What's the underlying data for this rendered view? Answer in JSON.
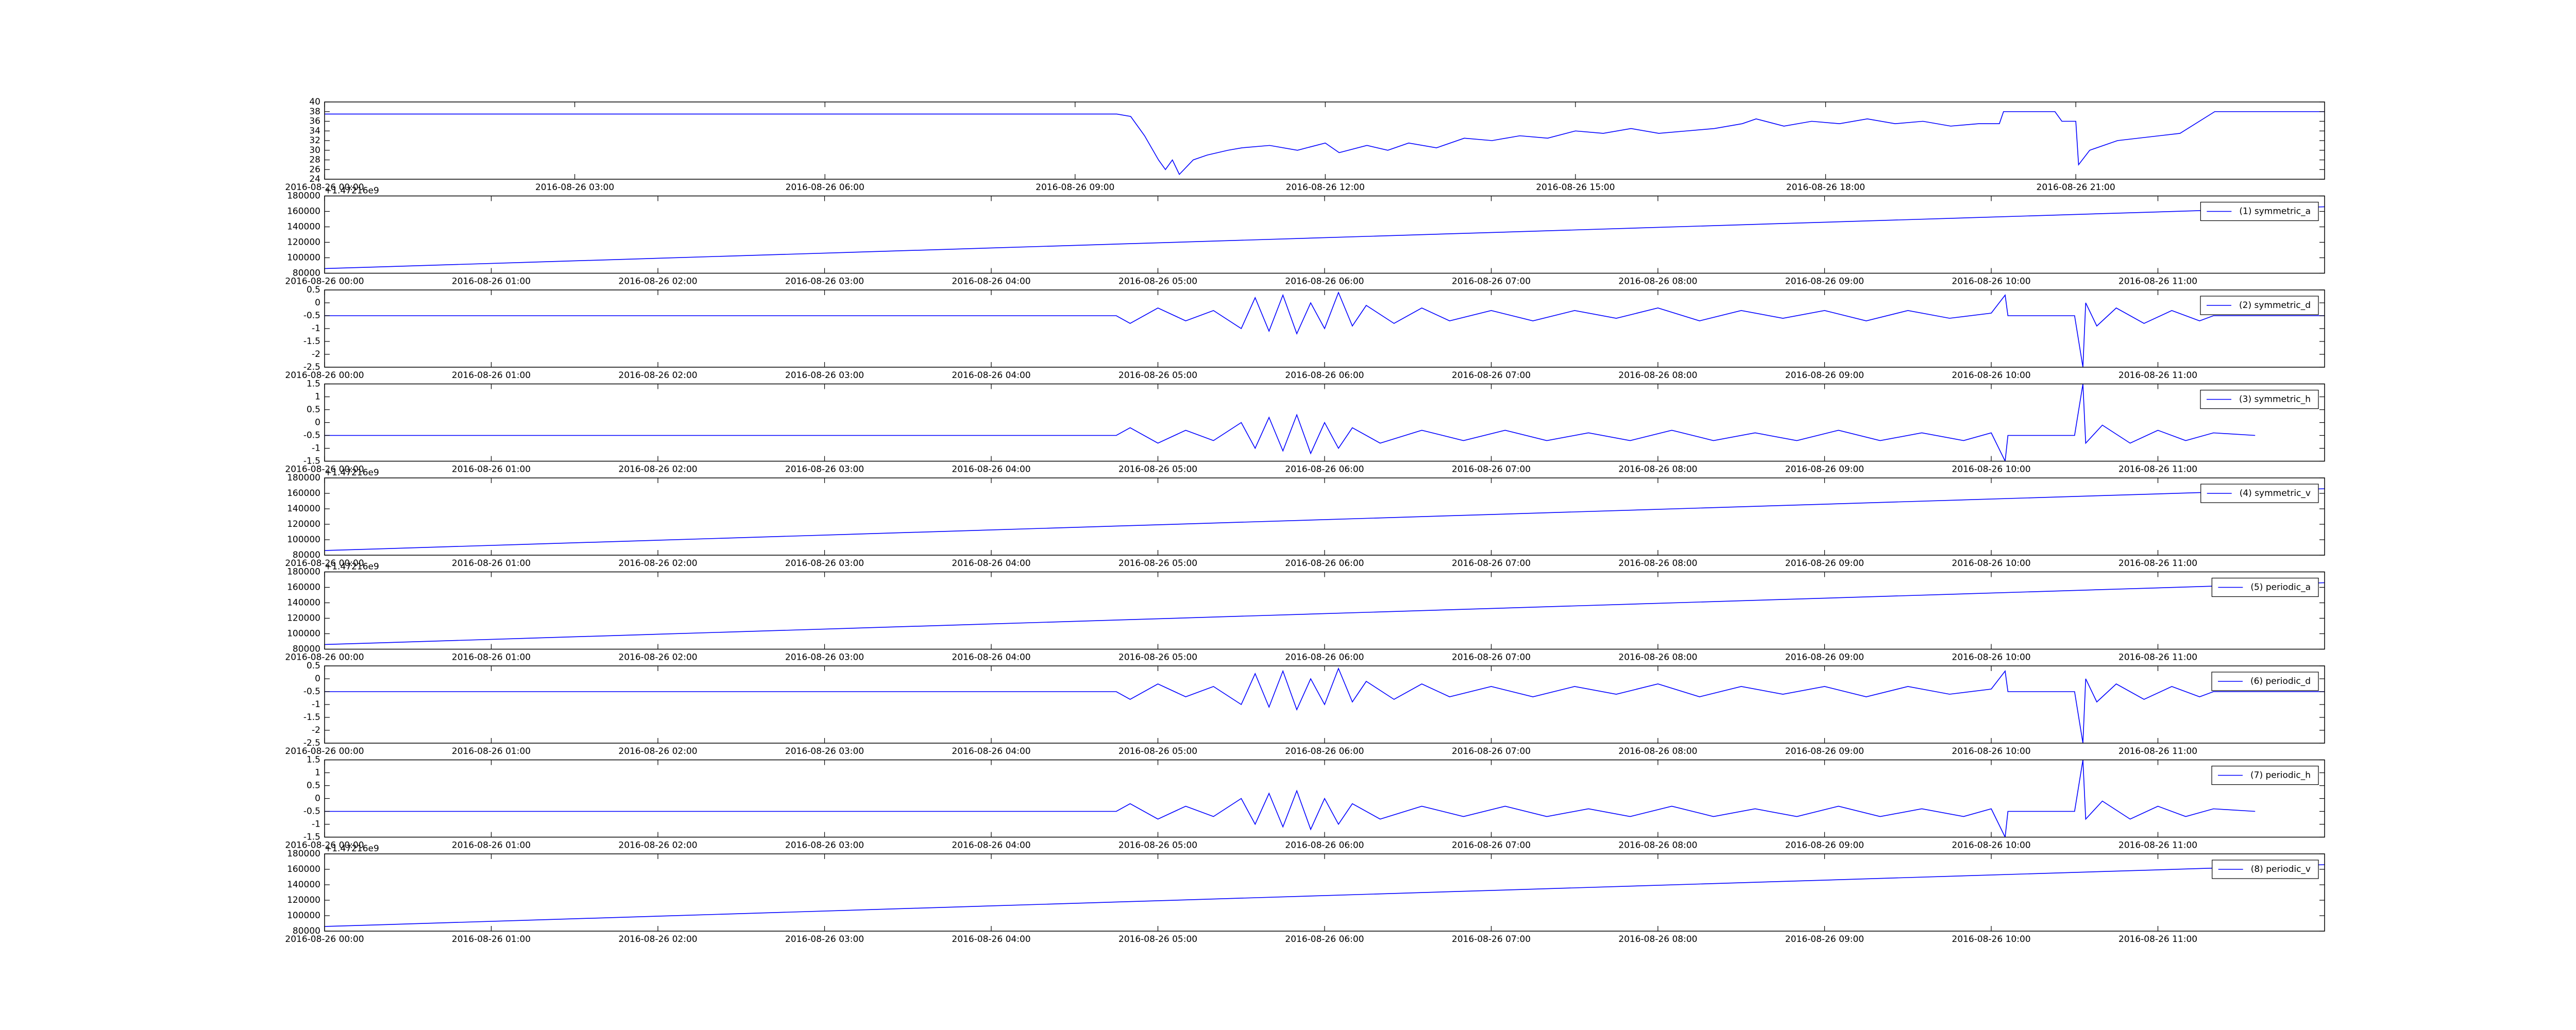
{
  "chart_data": [
    {
      "type": "line",
      "x": [
        "2016-08-26 00:00",
        "2016-08-26 09:30",
        "2016-08-26 09:40",
        "2016-08-26 09:50",
        "2016-08-26 10:00",
        "2016-08-26 10:05",
        "2016-08-26 10:10",
        "2016-08-26 10:15",
        "2016-08-26 10:25",
        "2016-08-26 10:35",
        "2016-08-26 10:50",
        "2016-08-26 11:00",
        "2016-08-26 11:20",
        "2016-08-26 11:40",
        "2016-08-26 12:00",
        "2016-08-26 12:10",
        "2016-08-26 12:30",
        "2016-08-26 12:45",
        "2016-08-26 13:00",
        "2016-08-26 13:20",
        "2016-08-26 13:40",
        "2016-08-26 14:00",
        "2016-08-26 14:20",
        "2016-08-26 14:40",
        "2016-08-26 15:00",
        "2016-08-26 15:20",
        "2016-08-26 15:40",
        "2016-08-26 16:00",
        "2016-08-26 16:20",
        "2016-08-26 16:40",
        "2016-08-26 17:00",
        "2016-08-26 17:10",
        "2016-08-26 17:30",
        "2016-08-26 17:50",
        "2016-08-26 18:10",
        "2016-08-26 18:30",
        "2016-08-26 18:50",
        "2016-08-26 19:10",
        "2016-08-26 19:30",
        "2016-08-26 19:50",
        "2016-08-26 20:05",
        "2016-08-26 20:08",
        "2016-08-26 20:45",
        "2016-08-26 20:50",
        "2016-08-26 21:00",
        "2016-08-26 21:02",
        "2016-08-26 21:10",
        "2016-08-26 21:30",
        "2016-08-26 22:00",
        "2016-08-26 22:15",
        "2016-08-26 22:40",
        "2016-08-26 23:59"
      ],
      "series": [
        {
          "color": "#0000ff",
          "values": [
            37.5,
            37.5,
            37,
            33,
            28,
            26,
            28,
            25,
            28,
            29,
            30,
            30.5,
            31,
            30,
            31.5,
            29.5,
            31,
            30,
            31.5,
            30.5,
            32.5,
            32,
            33,
            32.5,
            34,
            33.5,
            34.5,
            33.5,
            34,
            34.5,
            35.5,
            36.5,
            35,
            36,
            35.5,
            36.5,
            35.5,
            36,
            35,
            35.5,
            35.5,
            38,
            38,
            36,
            36,
            27,
            30,
            32,
            33,
            33.5,
            38,
            38
          ]
        }
      ],
      "xlim": [
        "2016-08-26 00:00",
        "2016-08-26 23:59"
      ],
      "xticks": [
        "2016-08-26 00:00",
        "2016-08-26 03:00",
        "2016-08-26 06:00",
        "2016-08-26 09:00",
        "2016-08-26 12:00",
        "2016-08-26 15:00",
        "2016-08-26 18:00",
        "2016-08-26 21:00"
      ],
      "ylim": [
        24,
        40
      ],
      "yticks": [
        24,
        26,
        28,
        30,
        32,
        34,
        36,
        38,
        40
      ]
    },
    {
      "type": "line",
      "y_offset_label": "+1.47216e9",
      "x": [
        "2016-08-26 00:00",
        "2016-08-26 12:00"
      ],
      "series": [
        {
          "name": "(1) symmetric_a",
          "color": "#0000ff",
          "values": [
            86000,
            166000
          ]
        }
      ],
      "legend": "upper right",
      "xlim": [
        "2016-08-26 00:00",
        "2016-08-26 12:00"
      ],
      "xticks": [
        "2016-08-26 00:00",
        "2016-08-26 01:00",
        "2016-08-26 02:00",
        "2016-08-26 03:00",
        "2016-08-26 04:00",
        "2016-08-26 05:00",
        "2016-08-26 06:00",
        "2016-08-26 07:00",
        "2016-08-26 08:00",
        "2016-08-26 09:00",
        "2016-08-26 10:00",
        "2016-08-26 11:00"
      ],
      "ylim": [
        80000,
        180000
      ],
      "yticks": [
        80000,
        100000,
        120000,
        140000,
        160000,
        180000
      ]
    },
    {
      "type": "line",
      "x": [
        "2016-08-26 00:00",
        "2016-08-26 04:45",
        "2016-08-26 04:50",
        "2016-08-26 05:00",
        "2016-08-26 05:10",
        "2016-08-26 05:20",
        "2016-08-26 05:30",
        "2016-08-26 05:35",
        "2016-08-26 05:40",
        "2016-08-26 05:45",
        "2016-08-26 05:50",
        "2016-08-26 05:55",
        "2016-08-26 06:00",
        "2016-08-26 06:05",
        "2016-08-26 06:10",
        "2016-08-26 06:15",
        "2016-08-26 06:25",
        "2016-08-26 06:35",
        "2016-08-26 06:45",
        "2016-08-26 07:00",
        "2016-08-26 07:15",
        "2016-08-26 07:30",
        "2016-08-26 07:45",
        "2016-08-26 08:00",
        "2016-08-26 08:15",
        "2016-08-26 08:30",
        "2016-08-26 08:45",
        "2016-08-26 09:00",
        "2016-08-26 09:15",
        "2016-08-26 09:30",
        "2016-08-26 09:45",
        "2016-08-26 10:00",
        "2016-08-26 10:05",
        "2016-08-26 10:06",
        "2016-08-26 10:30",
        "2016-08-26 10:33",
        "2016-08-26 10:34",
        "2016-08-26 10:38",
        "2016-08-26 10:45",
        "2016-08-26 10:55",
        "2016-08-26 11:05",
        "2016-08-26 11:15",
        "2016-08-26 11:20",
        "2016-08-26 12:00"
      ],
      "series": [
        {
          "name": "(2) symmetric_d",
          "color": "#0000ff",
          "values": [
            -0.5,
            -0.5,
            -0.8,
            -0.2,
            -0.7,
            -0.3,
            -1.0,
            0.2,
            -1.1,
            0.3,
            -1.2,
            0.0,
            -1.0,
            0.4,
            -0.9,
            -0.1,
            -0.8,
            -0.2,
            -0.7,
            -0.3,
            -0.7,
            -0.3,
            -0.6,
            -0.2,
            -0.7,
            -0.3,
            -0.6,
            -0.3,
            -0.7,
            -0.3,
            -0.6,
            -0.4,
            0.3,
            -0.5,
            -0.5,
            -2.5,
            0.0,
            -0.9,
            -0.2,
            -0.8,
            -0.3,
            -0.7,
            -0.5,
            -0.5
          ]
        }
      ],
      "legend": "upper right",
      "xlim": [
        "2016-08-26 00:00",
        "2016-08-26 12:00"
      ],
      "xticks": [
        "2016-08-26 00:00",
        "2016-08-26 01:00",
        "2016-08-26 02:00",
        "2016-08-26 03:00",
        "2016-08-26 04:00",
        "2016-08-26 05:00",
        "2016-08-26 06:00",
        "2016-08-26 07:00",
        "2016-08-26 08:00",
        "2016-08-26 09:00",
        "2016-08-26 10:00",
        "2016-08-26 11:00"
      ],
      "ylim": [
        -2.5,
        0.5
      ],
      "yticks": [
        -2.5,
        -2.0,
        -1.5,
        -1.0,
        -0.5,
        0.0,
        0.5
      ]
    },
    {
      "type": "line",
      "x": [
        "2016-08-26 00:00",
        "2016-08-26 04:45",
        "2016-08-26 04:50",
        "2016-08-26 05:00",
        "2016-08-26 05:10",
        "2016-08-26 05:20",
        "2016-08-26 05:30",
        "2016-08-26 05:35",
        "2016-08-26 05:40",
        "2016-08-26 05:45",
        "2016-08-26 05:50",
        "2016-08-26 05:55",
        "2016-08-26 06:00",
        "2016-08-26 06:05",
        "2016-08-26 06:10",
        "2016-08-26 06:20",
        "2016-08-26 06:35",
        "2016-08-26 06:50",
        "2016-08-26 07:05",
        "2016-08-26 07:20",
        "2016-08-26 07:35",
        "2016-08-26 07:50",
        "2016-08-26 08:05",
        "2016-08-26 08:20",
        "2016-08-26 08:35",
        "2016-08-26 08:50",
        "2016-08-26 09:05",
        "2016-08-26 09:20",
        "2016-08-26 09:35",
        "2016-08-26 09:50",
        "2016-08-26 10:00",
        "2016-08-26 10:05",
        "2016-08-26 10:06",
        "2016-08-26 10:30",
        "2016-08-26 10:33",
        "2016-08-26 10:34",
        "2016-08-26 10:40",
        "2016-08-26 10:50",
        "2016-08-26 11:00",
        "2016-08-26 11:10",
        "2016-08-26 11:20",
        "2016-08-26 11:35"
      ],
      "series": [
        {
          "name": "(3) symmetric_h",
          "color": "#0000ff",
          "values": [
            -0.5,
            -0.5,
            -0.2,
            -0.8,
            -0.3,
            -0.7,
            0.0,
            -1.0,
            0.2,
            -1.1,
            0.3,
            -1.2,
            0.0,
            -1.0,
            -0.2,
            -0.8,
            -0.3,
            -0.7,
            -0.3,
            -0.7,
            -0.4,
            -0.7,
            -0.3,
            -0.7,
            -0.4,
            -0.7,
            -0.3,
            -0.7,
            -0.4,
            -0.7,
            -0.4,
            -1.5,
            -0.5,
            -0.5,
            1.5,
            -0.8,
            -0.1,
            -0.8,
            -0.3,
            -0.7,
            -0.4,
            -0.5
          ]
        }
      ],
      "legend": "upper right",
      "xlim": [
        "2016-08-26 00:00",
        "2016-08-26 12:00"
      ],
      "xticks": [
        "2016-08-26 00:00",
        "2016-08-26 01:00",
        "2016-08-26 02:00",
        "2016-08-26 03:00",
        "2016-08-26 04:00",
        "2016-08-26 05:00",
        "2016-08-26 06:00",
        "2016-08-26 07:00",
        "2016-08-26 08:00",
        "2016-08-26 09:00",
        "2016-08-26 10:00",
        "2016-08-26 11:00"
      ],
      "ylim": [
        -1.5,
        1.5
      ],
      "yticks": [
        -1.5,
        -1.0,
        -0.5,
        0.0,
        0.5,
        1.0,
        1.5
      ]
    },
    {
      "type": "line",
      "y_offset_label": "+1.47216e9",
      "x": [
        "2016-08-26 00:00",
        "2016-08-26 12:00"
      ],
      "series": [
        {
          "name": "(4) symmetric_v",
          "color": "#0000ff",
          "values": [
            86000,
            166000
          ]
        }
      ],
      "legend": "upper right",
      "xlim": [
        "2016-08-26 00:00",
        "2016-08-26 12:00"
      ],
      "xticks": [
        "2016-08-26 00:00",
        "2016-08-26 01:00",
        "2016-08-26 02:00",
        "2016-08-26 03:00",
        "2016-08-26 04:00",
        "2016-08-26 05:00",
        "2016-08-26 06:00",
        "2016-08-26 07:00",
        "2016-08-26 08:00",
        "2016-08-26 09:00",
        "2016-08-26 10:00",
        "2016-08-26 11:00"
      ],
      "ylim": [
        80000,
        180000
      ],
      "yticks": [
        80000,
        100000,
        120000,
        140000,
        160000,
        180000
      ]
    },
    {
      "type": "line",
      "y_offset_label": "+1.47216e9",
      "x": [
        "2016-08-26 00:00",
        "2016-08-26 12:00"
      ],
      "series": [
        {
          "name": "(5) periodic_a",
          "color": "#0000ff",
          "values": [
            86000,
            166000
          ]
        }
      ],
      "legend": "upper right",
      "xlim": [
        "2016-08-26 00:00",
        "2016-08-26 12:00"
      ],
      "xticks": [
        "2016-08-26 00:00",
        "2016-08-26 01:00",
        "2016-08-26 02:00",
        "2016-08-26 03:00",
        "2016-08-26 04:00",
        "2016-08-26 05:00",
        "2016-08-26 06:00",
        "2016-08-26 07:00",
        "2016-08-26 08:00",
        "2016-08-26 09:00",
        "2016-08-26 10:00",
        "2016-08-26 11:00"
      ],
      "ylim": [
        80000,
        180000
      ],
      "yticks": [
        80000,
        100000,
        120000,
        140000,
        160000,
        180000
      ]
    },
    {
      "type": "line",
      "x": [
        "2016-08-26 00:00",
        "2016-08-26 04:45",
        "2016-08-26 04:50",
        "2016-08-26 05:00",
        "2016-08-26 05:10",
        "2016-08-26 05:20",
        "2016-08-26 05:30",
        "2016-08-26 05:35",
        "2016-08-26 05:40",
        "2016-08-26 05:45",
        "2016-08-26 05:50",
        "2016-08-26 05:55",
        "2016-08-26 06:00",
        "2016-08-26 06:05",
        "2016-08-26 06:10",
        "2016-08-26 06:15",
        "2016-08-26 06:25",
        "2016-08-26 06:35",
        "2016-08-26 06:45",
        "2016-08-26 07:00",
        "2016-08-26 07:15",
        "2016-08-26 07:30",
        "2016-08-26 07:45",
        "2016-08-26 08:00",
        "2016-08-26 08:15",
        "2016-08-26 08:30",
        "2016-08-26 08:45",
        "2016-08-26 09:00",
        "2016-08-26 09:15",
        "2016-08-26 09:30",
        "2016-08-26 09:45",
        "2016-08-26 10:00",
        "2016-08-26 10:05",
        "2016-08-26 10:06",
        "2016-08-26 10:30",
        "2016-08-26 10:33",
        "2016-08-26 10:34",
        "2016-08-26 10:38",
        "2016-08-26 10:45",
        "2016-08-26 10:55",
        "2016-08-26 11:05",
        "2016-08-26 11:15",
        "2016-08-26 11:20",
        "2016-08-26 12:00"
      ],
      "series": [
        {
          "name": "(6) periodic_d",
          "color": "#0000ff",
          "values": [
            -0.5,
            -0.5,
            -0.8,
            -0.2,
            -0.7,
            -0.3,
            -1.0,
            0.2,
            -1.1,
            0.3,
            -1.2,
            0.0,
            -1.0,
            0.4,
            -0.9,
            -0.1,
            -0.8,
            -0.2,
            -0.7,
            -0.3,
            -0.7,
            -0.3,
            -0.6,
            -0.2,
            -0.7,
            -0.3,
            -0.6,
            -0.3,
            -0.7,
            -0.3,
            -0.6,
            -0.4,
            0.3,
            -0.5,
            -0.5,
            -2.5,
            0.0,
            -0.9,
            -0.2,
            -0.8,
            -0.3,
            -0.7,
            -0.5,
            -0.5
          ]
        }
      ],
      "legend": "upper right",
      "xlim": [
        "2016-08-26 00:00",
        "2016-08-26 12:00"
      ],
      "xticks": [
        "2016-08-26 00:00",
        "2016-08-26 01:00",
        "2016-08-26 02:00",
        "2016-08-26 03:00",
        "2016-08-26 04:00",
        "2016-08-26 05:00",
        "2016-08-26 06:00",
        "2016-08-26 07:00",
        "2016-08-26 08:00",
        "2016-08-26 09:00",
        "2016-08-26 10:00",
        "2016-08-26 11:00"
      ],
      "ylim": [
        -2.5,
        0.5
      ],
      "yticks": [
        -2.5,
        -2.0,
        -1.5,
        -1.0,
        -0.5,
        0.0,
        0.5
      ]
    },
    {
      "type": "line",
      "x": [
        "2016-08-26 00:00",
        "2016-08-26 04:45",
        "2016-08-26 04:50",
        "2016-08-26 05:00",
        "2016-08-26 05:10",
        "2016-08-26 05:20",
        "2016-08-26 05:30",
        "2016-08-26 05:35",
        "2016-08-26 05:40",
        "2016-08-26 05:45",
        "2016-08-26 05:50",
        "2016-08-26 05:55",
        "2016-08-26 06:00",
        "2016-08-26 06:05",
        "2016-08-26 06:10",
        "2016-08-26 06:20",
        "2016-08-26 06:35",
        "2016-08-26 06:50",
        "2016-08-26 07:05",
        "2016-08-26 07:20",
        "2016-08-26 07:35",
        "2016-08-26 07:50",
        "2016-08-26 08:05",
        "2016-08-26 08:20",
        "2016-08-26 08:35",
        "2016-08-26 08:50",
        "2016-08-26 09:05",
        "2016-08-26 09:20",
        "2016-08-26 09:35",
        "2016-08-26 09:50",
        "2016-08-26 10:00",
        "2016-08-26 10:05",
        "2016-08-26 10:06",
        "2016-08-26 10:30",
        "2016-08-26 10:33",
        "2016-08-26 10:34",
        "2016-08-26 10:40",
        "2016-08-26 10:50",
        "2016-08-26 11:00",
        "2016-08-26 11:10",
        "2016-08-26 11:20",
        "2016-08-26 11:35"
      ],
      "series": [
        {
          "name": "(7) periodic_h",
          "color": "#0000ff",
          "values": [
            -0.5,
            -0.5,
            -0.2,
            -0.8,
            -0.3,
            -0.7,
            0.0,
            -1.0,
            0.2,
            -1.1,
            0.3,
            -1.2,
            0.0,
            -1.0,
            -0.2,
            -0.8,
            -0.3,
            -0.7,
            -0.3,
            -0.7,
            -0.4,
            -0.7,
            -0.3,
            -0.7,
            -0.4,
            -0.7,
            -0.3,
            -0.7,
            -0.4,
            -0.7,
            -0.4,
            -1.5,
            -0.5,
            -0.5,
            1.5,
            -0.8,
            -0.1,
            -0.8,
            -0.3,
            -0.7,
            -0.4,
            -0.5
          ]
        }
      ],
      "legend": "upper right",
      "xlim": [
        "2016-08-26 00:00",
        "2016-08-26 12:00"
      ],
      "xticks": [
        "2016-08-26 00:00",
        "2016-08-26 01:00",
        "2016-08-26 02:00",
        "2016-08-26 03:00",
        "2016-08-26 04:00",
        "2016-08-26 05:00",
        "2016-08-26 06:00",
        "2016-08-26 07:00",
        "2016-08-26 08:00",
        "2016-08-26 09:00",
        "2016-08-26 10:00",
        "2016-08-26 11:00"
      ],
      "ylim": [
        -1.5,
        1.5
      ],
      "yticks": [
        -1.5,
        -1.0,
        -0.5,
        0.0,
        0.5,
        1.0,
        1.5
      ]
    },
    {
      "type": "line",
      "y_offset_label": "+1.47216e9",
      "x": [
        "2016-08-26 00:00",
        "2016-08-26 12:00"
      ],
      "series": [
        {
          "name": "(8) periodic_v",
          "color": "#0000ff",
          "values": [
            86000,
            166000
          ]
        }
      ],
      "legend": "upper right",
      "xlim": [
        "2016-08-26 00:00",
        "2016-08-26 12:00"
      ],
      "xticks": [
        "2016-08-26 00:00",
        "2016-08-26 01:00",
        "2016-08-26 02:00",
        "2016-08-26 03:00",
        "2016-08-26 04:00",
        "2016-08-26 05:00",
        "2016-08-26 06:00",
        "2016-08-26 07:00",
        "2016-08-26 08:00",
        "2016-08-26 09:00",
        "2016-08-26 10:00",
        "2016-08-26 11:00"
      ],
      "ylim": [
        80000,
        180000
      ],
      "yticks": [
        80000,
        100000,
        120000,
        140000,
        160000,
        180000
      ]
    }
  ]
}
